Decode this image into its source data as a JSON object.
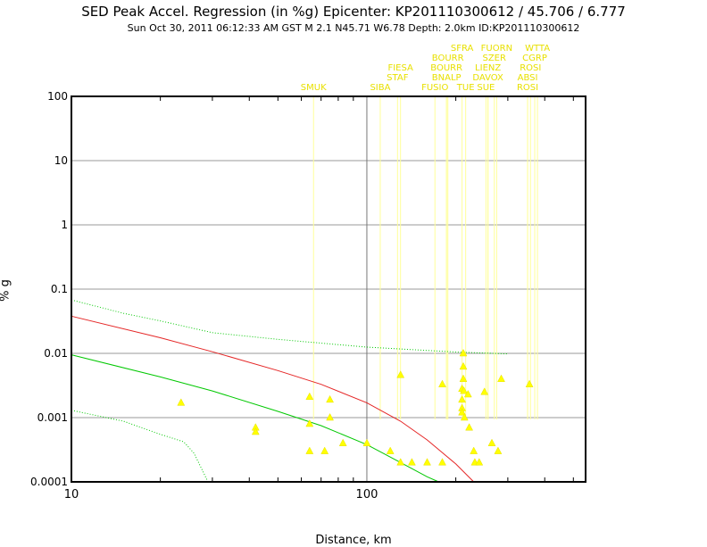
{
  "header": {
    "title": "SED Peak Accel. Regression (in %g) Epicenter: KP201110300612 / 45.706 / 6.777",
    "subtitle": "Sun Oct 30, 2011 06:12:33 AM GST   M 2.1   N45.71 W6.78   Depth: 2.0km   ID:KP201110300612"
  },
  "colors": {
    "regression": "#e00000",
    "mean": "#00c800",
    "bounds": "#00c800",
    "station": "#ffff00",
    "station_line": "#ffff99",
    "grid": "#999999"
  },
  "chart_data": {
    "type": "scatter",
    "title": "SED Peak Accel. Regression (in %g) Epicenter: KP201110300612 / 45.706 / 6.777",
    "xlabel": "Distance, km",
    "ylabel": "% g",
    "xscale": "log",
    "yscale": "log",
    "xlim": [
      10,
      550
    ],
    "ylim": [
      0.0001,
      100
    ],
    "grid": true,
    "x_ticks": [
      "10",
      "100"
    ],
    "y_ticks": [
      "0.0001",
      "0.001",
      "0.01",
      "0.1",
      "1",
      "10",
      "100"
    ],
    "station_labels": [
      {
        "name": "SMUK",
        "x": 66
      },
      {
        "name": "SIBA",
        "x": 111
      },
      {
        "name": "STAF",
        "x": 127
      },
      {
        "name": "FIESA",
        "x": 130
      },
      {
        "name": "FUSIO",
        "x": 170
      },
      {
        "name": "BNALP",
        "x": 186
      },
      {
        "name": "BOURR",
        "x": 186
      },
      {
        "name": "BOURR",
        "x": 188
      },
      {
        "name": "SFRA",
        "x": 210
      },
      {
        "name": "TUE",
        "x": 216
      },
      {
        "name": "SUE",
        "x": 253
      },
      {
        "name": "DAVOX",
        "x": 257
      },
      {
        "name": "LIENZ",
        "x": 257
      },
      {
        "name": "SZER",
        "x": 270
      },
      {
        "name": "FUORN",
        "x": 275
      },
      {
        "name": "ROSI",
        "x": 350
      },
      {
        "name": "ABSI",
        "x": 350
      },
      {
        "name": "ROSI",
        "x": 358
      },
      {
        "name": "CGRP",
        "x": 370
      },
      {
        "name": "WTTA",
        "x": 378
      }
    ],
    "series": [
      {
        "kind": "regression",
        "points": [
          [
            10,
            0.038
          ],
          [
            20,
            0.0175
          ],
          [
            30,
            0.0106
          ],
          [
            50,
            0.0054
          ],
          [
            70,
            0.0033
          ],
          [
            100,
            0.0017
          ],
          [
            130,
            0.00088
          ],
          [
            160,
            0.00045
          ],
          [
            200,
            0.00019
          ],
          [
            230,
            0.0001
          ]
        ]
      },
      {
        "kind": "mean",
        "points": [
          [
            10,
            0.0095
          ],
          [
            20,
            0.0043
          ],
          [
            30,
            0.0026
          ],
          [
            50,
            0.00125
          ],
          [
            70,
            0.00075
          ],
          [
            100,
            0.00038
          ],
          [
            130,
            0.0002
          ],
          [
            160,
            0.00012
          ],
          [
            175,
            0.0001
          ]
        ]
      },
      {
        "kind": "upper",
        "points": [
          [
            10,
            0.068
          ],
          [
            15,
            0.042
          ],
          [
            20,
            0.032
          ],
          [
            30,
            0.021
          ],
          [
            50,
            0.0165
          ],
          [
            100,
            0.0125
          ],
          [
            200,
            0.0105
          ],
          [
            300,
            0.0098
          ]
        ]
      },
      {
        "kind": "lower",
        "points": [
          [
            10,
            0.0013
          ],
          [
            15,
            0.00088
          ],
          [
            20,
            0.00055
          ],
          [
            24,
            0.00042
          ],
          [
            26,
            0.00028
          ],
          [
            29,
            0.0001
          ]
        ]
      }
    ],
    "points": [
      [
        23.5,
        0.0017
      ],
      [
        42,
        0.0007
      ],
      [
        42,
        0.0006
      ],
      [
        64,
        0.0021
      ],
      [
        64,
        0.0008
      ],
      [
        64,
        0.0003
      ],
      [
        72,
        0.0003
      ],
      [
        75,
        0.0019
      ],
      [
        75,
        0.001
      ],
      [
        83,
        0.0004
      ],
      [
        100,
        0.0004
      ],
      [
        120,
        0.0003
      ],
      [
        130,
        0.0046
      ],
      [
        130,
        0.0002
      ],
      [
        142,
        0.0002
      ],
      [
        160,
        0.0002
      ],
      [
        180,
        0.0033
      ],
      [
        180,
        0.0002
      ],
      [
        210,
        0.0028
      ],
      [
        210,
        0.0019
      ],
      [
        210,
        0.0014
      ],
      [
        210,
        0.0012
      ],
      [
        212,
        0.01
      ],
      [
        212,
        0.0062
      ],
      [
        212,
        0.004
      ],
      [
        213,
        0.0026
      ],
      [
        214,
        0.001
      ],
      [
        220,
        0.0023
      ],
      [
        222,
        0.0007
      ],
      [
        230,
        0.0003
      ],
      [
        232,
        0.0002
      ],
      [
        240,
        0.0002
      ],
      [
        250,
        0.0025
      ],
      [
        265,
        0.0004
      ],
      [
        278,
        0.0003
      ],
      [
        285,
        0.004
      ],
      [
        355,
        0.0033
      ]
    ]
  }
}
